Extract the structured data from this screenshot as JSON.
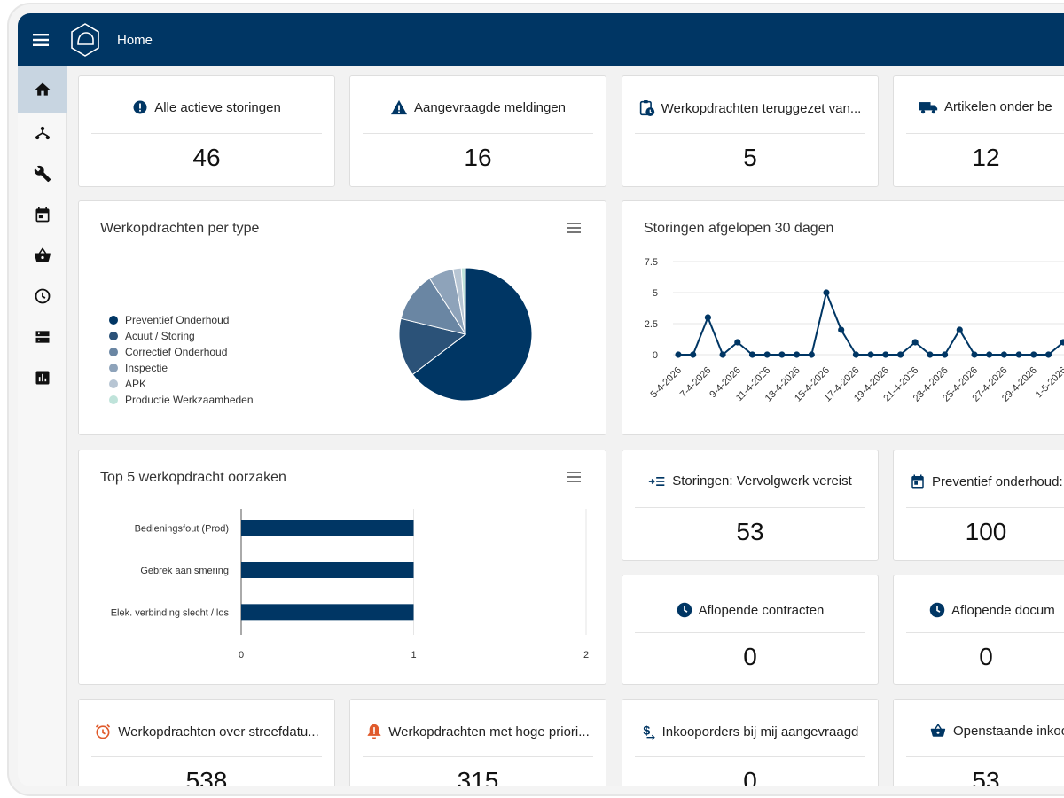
{
  "header": {
    "title": "Home"
  },
  "kpi_top": [
    {
      "label": "Alle actieve storingen",
      "value": "46",
      "icon": "exclamation-circle-icon"
    },
    {
      "label": "Aangevraagde meldingen",
      "value": "16",
      "icon": "warning-triangle-icon"
    },
    {
      "label": "Werkopdrachten teruggezet van...",
      "value": "5",
      "icon": "clipboard-clock-icon"
    },
    {
      "label": "Artikelen onder be",
      "value": "12",
      "icon": "truck-icon"
    }
  ],
  "pie_panel": {
    "title": "Werkopdrachten per type",
    "legend": [
      "Preventief Onderhoud",
      "Acuut / Storing",
      "Correctief Onderhoud",
      "Inspectie",
      "APK",
      "Productie Werkzaamheden"
    ]
  },
  "line_panel": {
    "title": "Storingen afgelopen 30 dagen"
  },
  "bar_panel": {
    "title": "Top 5 werkopdracht oorzaken"
  },
  "kpi_mid": [
    {
      "label": "Storingen: Vervolgwerk vereist",
      "value": "53",
      "icon": "arrow-list-icon"
    },
    {
      "label": "Preventief onderhoud:",
      "value": "100",
      "icon": "calendar-icon"
    },
    {
      "label": "Aflopende contracten",
      "value": "0",
      "icon": "clock-icon"
    },
    {
      "label": "Aflopende docum",
      "value": "0",
      "icon": "clock-icon"
    }
  ],
  "kpi_bottom": [
    {
      "label": "Werkopdrachten over streefdatu...",
      "value": "538",
      "icon": "alarm-clock-icon"
    },
    {
      "label": "Werkopdrachten met hoge priori...",
      "value": "315",
      "icon": "bell-alert-icon"
    },
    {
      "label": "Inkooporders bij mij aangevraagd",
      "value": "0",
      "icon": "dollar-icon"
    },
    {
      "label": "Openstaande inkoo",
      "value": "53",
      "icon": "basket-icon"
    }
  ],
  "colors": {
    "primary": "#003664",
    "accent_orange": "#e05a2b",
    "background": "#f2f2f2"
  },
  "chart_data": [
    {
      "type": "pie",
      "title": "Werkopdrachten per type",
      "categories": [
        "Preventief Onderhoud",
        "Acuut / Storing",
        "Correctief Onderhoud",
        "Inspectie",
        "APK",
        "Productie Werkzaamheden"
      ],
      "values": [
        64,
        14,
        12,
        6,
        2,
        1
      ],
      "colors": [
        "#003664",
        "#2b5278",
        "#6a86a3",
        "#8ea3ba",
        "#b7c5d3",
        "#bfe3da"
      ],
      "legend": "left"
    },
    {
      "type": "line",
      "title": "Storingen afgelopen 30 dagen",
      "x": [
        "5-4-2026",
        "6-4-2026",
        "7-4-2026",
        "8-4-2026",
        "9-4-2026",
        "10-4-2026",
        "11-4-2026",
        "12-4-2026",
        "13-4-2026",
        "14-4-2026",
        "15-4-2026",
        "16-4-2026",
        "17-4-2026",
        "18-4-2026",
        "19-4-2026",
        "20-4-2026",
        "21-4-2026",
        "22-4-2026",
        "23-4-2026",
        "24-4-2026",
        "25-4-2026",
        "26-4-2026",
        "27-4-2026",
        "28-4-2026",
        "29-4-2026",
        "30-4-2026",
        "1-5-2026"
      ],
      "x_tick_labels": [
        "5-4-2026",
        "7-4-2026",
        "9-4-2026",
        "11-4-2026",
        "13-4-2026",
        "15-4-2026",
        "17-4-2026",
        "19-4-2026",
        "21-4-2026",
        "23-4-2026",
        "25-4-2026",
        "27-4-2026",
        "29-4-2026",
        "1-5-2026"
      ],
      "y": [
        0,
        0,
        3,
        0,
        1,
        0,
        0,
        0,
        0,
        0,
        5,
        2,
        0,
        0,
        0,
        0,
        1,
        0,
        0,
        2,
        0,
        0,
        0,
        0,
        0,
        0,
        1
      ],
      "y_ticks": [
        "0",
        "2.5",
        "5",
        "7.5"
      ],
      "ylim": [
        0,
        7.5
      ],
      "grid": true
    },
    {
      "type": "bar",
      "orientation": "horizontal",
      "title": "Top 5 werkopdracht oorzaken",
      "categories": [
        "Bedieningsfout (Prod)",
        "Gebrek aan smering",
        "Elek. verbinding slecht / los"
      ],
      "values": [
        1,
        1,
        1
      ],
      "x_ticks": [
        "0",
        "1",
        "2"
      ],
      "xlim": [
        0,
        2
      ]
    }
  ]
}
